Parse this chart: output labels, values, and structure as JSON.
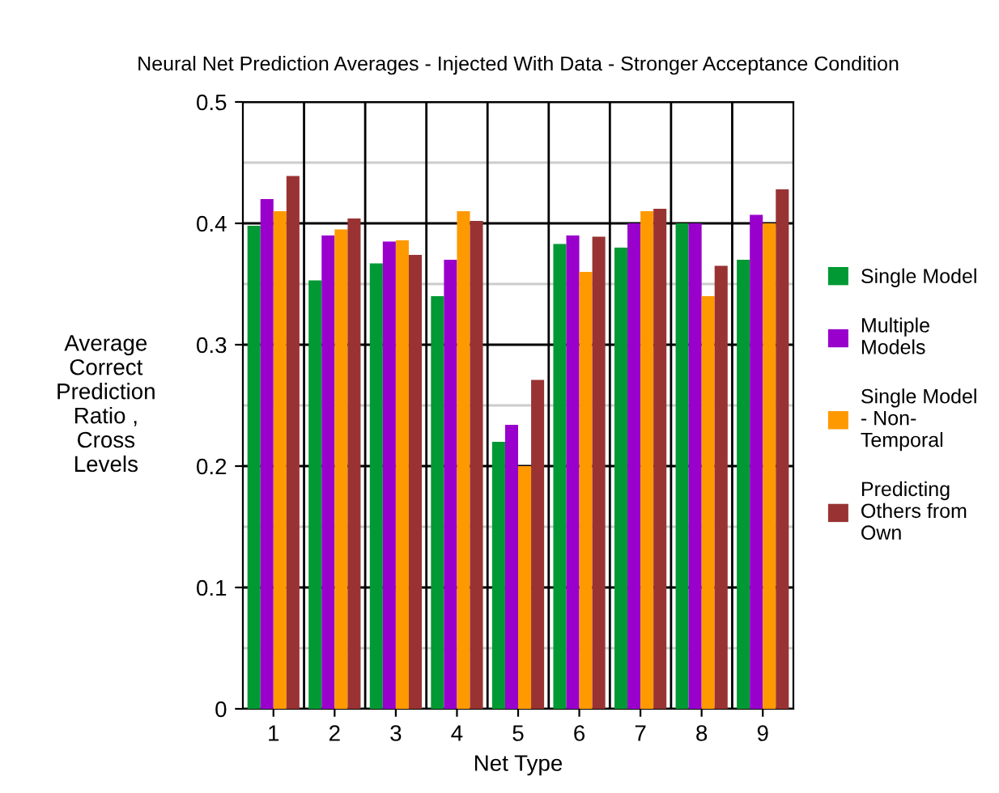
{
  "chart_data": {
    "type": "bar",
    "title": "Neural Net Prediction Averages - Injected With Data - Stronger Acceptance Condition",
    "xlabel": "Net Type",
    "ylabel": "Average\nCorrect\nPrediction\nRatio ,\nCross\nLevels",
    "categories": [
      "1",
      "2",
      "3",
      "4",
      "5",
      "6",
      "7",
      "8",
      "9"
    ],
    "series": [
      {
        "name": "Single Model",
        "color": "#009933",
        "values": [
          0.398,
          0.353,
          0.367,
          0.34,
          0.22,
          0.383,
          0.38,
          0.4,
          0.37
        ]
      },
      {
        "name": "Multiple\nModels",
        "color": "#9900cc",
        "values": [
          0.42,
          0.39,
          0.385,
          0.37,
          0.234,
          0.39,
          0.4,
          0.4,
          0.407
        ]
      },
      {
        "name": "Single Model\n- Non-\nTemporal",
        "color": "#ff9900",
        "values": [
          0.41,
          0.395,
          0.386,
          0.41,
          0.2,
          0.36,
          0.41,
          0.34,
          0.4
        ]
      },
      {
        "name": "Predicting\nOthers from\nOwn",
        "color": "#993333",
        "values": [
          0.439,
          0.404,
          0.374,
          0.402,
          0.271,
          0.389,
          0.412,
          0.365,
          0.428
        ]
      }
    ],
    "ylim": [
      0,
      0.5
    ],
    "yticks": [
      0,
      {
        "value": 0.05,
        "label": null
      },
      0.1,
      {
        "value": 0.15,
        "label": null
      },
      0.2,
      {
        "value": 0.25,
        "label": null
      },
      0.3,
      {
        "value": 0.35,
        "label": null
      },
      0.4,
      {
        "value": 0.45,
        "label": null
      },
      0.5
    ],
    "grid": true,
    "legend": "right"
  }
}
